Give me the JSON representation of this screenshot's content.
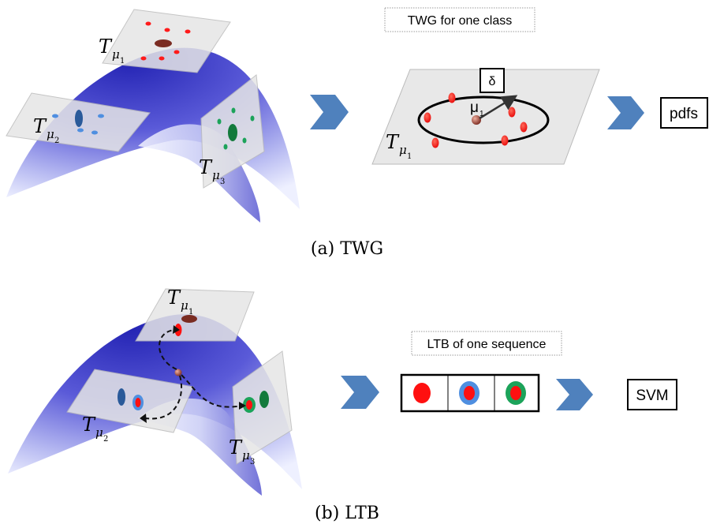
{
  "panel_a": {
    "caption": "(a) TWG",
    "manifold_labels": {
      "t1": "T",
      "t1_sub": "μ",
      "t1_idx": "1",
      "t2": "T",
      "t2_sub": "μ",
      "t2_idx": "2",
      "t3": "T",
      "t3_sub": "μ",
      "t3_idx": "3"
    },
    "title_box": "TWG for one class",
    "delta": "δ",
    "mu": "μ",
    "mu_idx": "1",
    "plane_label": "T",
    "plane_sub": "μ",
    "plane_idx": "1",
    "output": "pdfs"
  },
  "panel_b": {
    "caption": "(b) LTB",
    "manifold_labels": {
      "t1": "T",
      "t1_sub": "μ",
      "t1_idx": "1",
      "t2": "T",
      "t2_sub": "μ",
      "t2_idx": "2",
      "t3": "T",
      "t3_sub": "μ",
      "t3_idx": "3"
    },
    "title_box": "LTB of one sequence",
    "output": "SVM"
  },
  "colors": {
    "manifold_top": "#2a2ab8",
    "manifold_light": "#e4e6fb",
    "plane": "#e6e6e6",
    "arrow": "#4f81bd",
    "red": "#ff1010",
    "blue": "#4f8fe0",
    "green": "#1ca35a"
  }
}
